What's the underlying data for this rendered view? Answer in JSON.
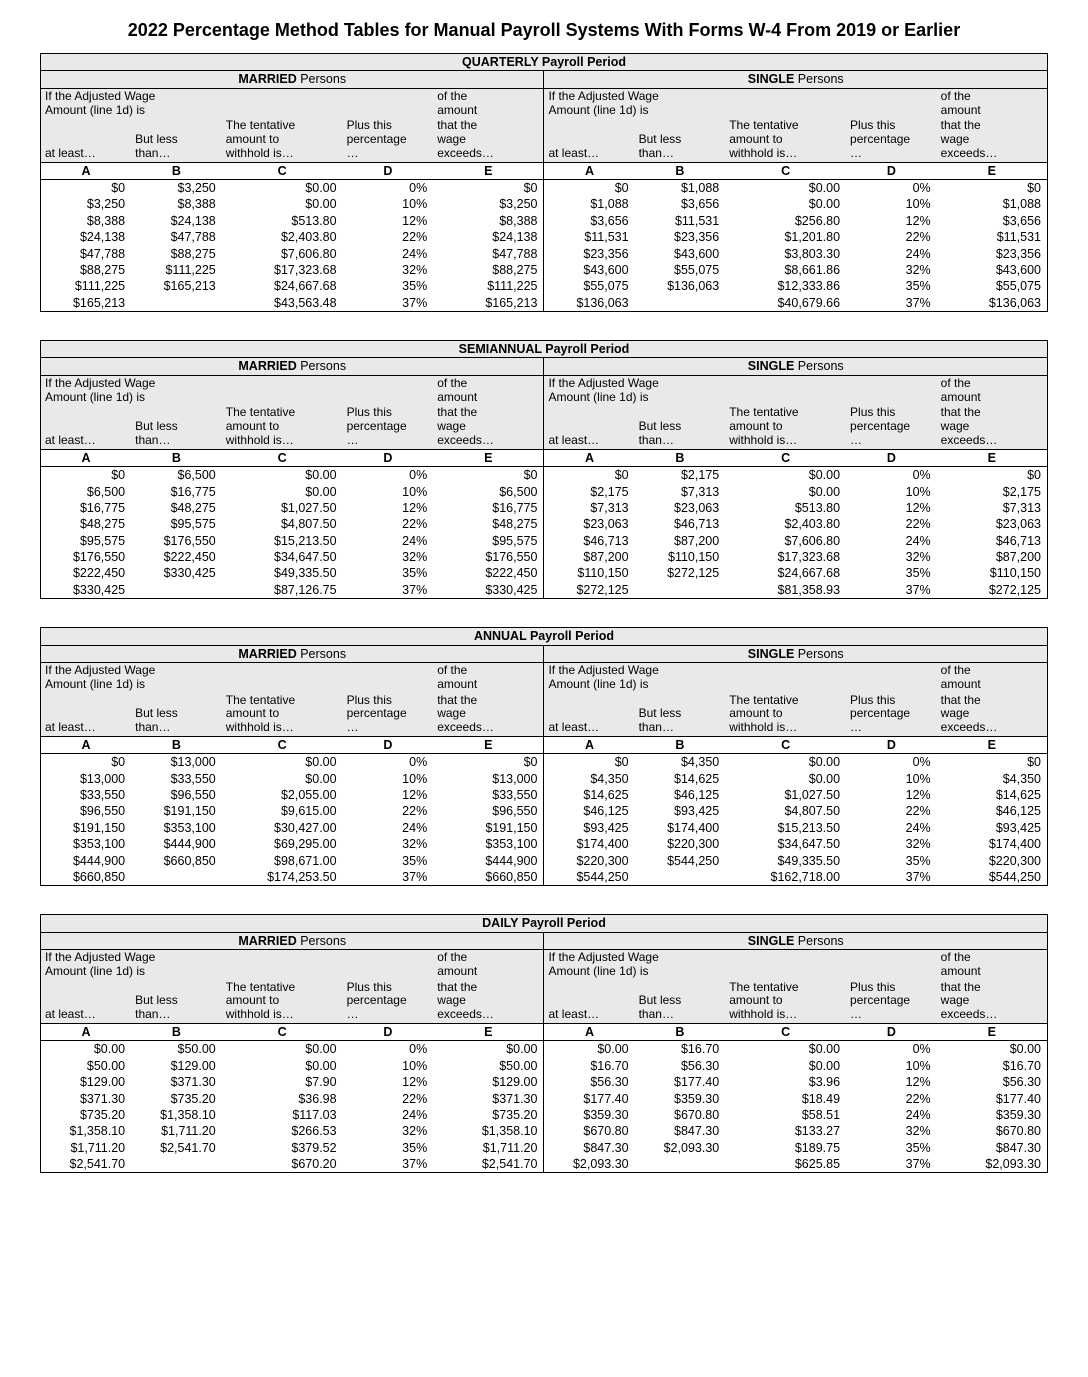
{
  "page_title": "2022 Percentage Method Tables for Manual Payroll Systems With Forms W-4 From 2019 or Earlier",
  "status_labels": {
    "married": "MARRIED",
    "single": "SINGLE",
    "persons": " Persons"
  },
  "header_texts": {
    "adj_wage_l1": "If the Adjusted Wage",
    "adj_wage_l2": "Amount (line 1d) is",
    "of_the": "of the",
    "amount": "amount",
    "amount_that": "amount that",
    "that_the": "that the",
    "the_wage": "the wage",
    "at_least": "at least…",
    "but_less": "But less",
    "than": "than…",
    "tentative_l1": "The tentative",
    "tentative_l2": "amount to",
    "tentative_l3": "withhold is…",
    "plus_this": "Plus this",
    "percentage": "percentage",
    "ellipsis": "…",
    "wage": "wage",
    "exceeds": "exceeds…",
    "A": "A",
    "B": "B",
    "C": "C",
    "D": "D",
    "E": "E"
  },
  "periods": [
    {
      "title": "QUARTERLY Payroll Period",
      "married": [
        [
          "$0",
          "$3,250",
          "$0.00",
          "0%",
          "$0"
        ],
        [
          "$3,250",
          "$8,388",
          "$0.00",
          "10%",
          "$3,250"
        ],
        [
          "$8,388",
          "$24,138",
          "$513.80",
          "12%",
          "$8,388"
        ],
        [
          "$24,138",
          "$47,788",
          "$2,403.80",
          "22%",
          "$24,138"
        ],
        [
          "$47,788",
          "$88,275",
          "$7,606.80",
          "24%",
          "$47,788"
        ],
        [
          "$88,275",
          "$111,225",
          "$17,323.68",
          "32%",
          "$88,275"
        ],
        [
          "$111,225",
          "$165,213",
          "$24,667.68",
          "35%",
          "$111,225"
        ],
        [
          "$165,213",
          "",
          "$43,563.48",
          "37%",
          "$165,213"
        ]
      ],
      "single": [
        [
          "$0",
          "$1,088",
          "$0.00",
          "0%",
          "$0"
        ],
        [
          "$1,088",
          "$3,656",
          "$0.00",
          "10%",
          "$1,088"
        ],
        [
          "$3,656",
          "$11,531",
          "$256.80",
          "12%",
          "$3,656"
        ],
        [
          "$11,531",
          "$23,356",
          "$1,201.80",
          "22%",
          "$11,531"
        ],
        [
          "$23,356",
          "$43,600",
          "$3,803.30",
          "24%",
          "$23,356"
        ],
        [
          "$43,600",
          "$55,075",
          "$8,661.86",
          "32%",
          "$43,600"
        ],
        [
          "$55,075",
          "$136,063",
          "$12,333.86",
          "35%",
          "$55,075"
        ],
        [
          "$136,063",
          "",
          "$40,679.66",
          "37%",
          "$136,063"
        ]
      ]
    },
    {
      "title": "SEMIANNUAL Payroll Period",
      "married": [
        [
          "$0",
          "$6,500",
          "$0.00",
          "0%",
          "$0"
        ],
        [
          "$6,500",
          "$16,775",
          "$0.00",
          "10%",
          "$6,500"
        ],
        [
          "$16,775",
          "$48,275",
          "$1,027.50",
          "12%",
          "$16,775"
        ],
        [
          "$48,275",
          "$95,575",
          "$4,807.50",
          "22%",
          "$48,275"
        ],
        [
          "$95,575",
          "$176,550",
          "$15,213.50",
          "24%",
          "$95,575"
        ],
        [
          "$176,550",
          "$222,450",
          "$34,647.50",
          "32%",
          "$176,550"
        ],
        [
          "$222,450",
          "$330,425",
          "$49,335.50",
          "35%",
          "$222,450"
        ],
        [
          "$330,425",
          "",
          "$87,126.75",
          "37%",
          "$330,425"
        ]
      ],
      "single": [
        [
          "$0",
          "$2,175",
          "$0.00",
          "0%",
          "$0"
        ],
        [
          "$2,175",
          "$7,313",
          "$0.00",
          "10%",
          "$2,175"
        ],
        [
          "$7,313",
          "$23,063",
          "$513.80",
          "12%",
          "$7,313"
        ],
        [
          "$23,063",
          "$46,713",
          "$2,403.80",
          "22%",
          "$23,063"
        ],
        [
          "$46,713",
          "$87,200",
          "$7,606.80",
          "24%",
          "$46,713"
        ],
        [
          "$87,200",
          "$110,150",
          "$17,323.68",
          "32%",
          "$87,200"
        ],
        [
          "$110,150",
          "$272,125",
          "$24,667.68",
          "35%",
          "$110,150"
        ],
        [
          "$272,125",
          "",
          "$81,358.93",
          "37%",
          "$272,125"
        ]
      ]
    },
    {
      "title": "ANNUAL Payroll Period",
      "married": [
        [
          "$0",
          "$13,000",
          "$0.00",
          "0%",
          "$0"
        ],
        [
          "$13,000",
          "$33,550",
          "$0.00",
          "10%",
          "$13,000"
        ],
        [
          "$33,550",
          "$96,550",
          "$2,055.00",
          "12%",
          "$33,550"
        ],
        [
          "$96,550",
          "$191,150",
          "$9,615.00",
          "22%",
          "$96,550"
        ],
        [
          "$191,150",
          "$353,100",
          "$30,427.00",
          "24%",
          "$191,150"
        ],
        [
          "$353,100",
          "$444,900",
          "$69,295.00",
          "32%",
          "$353,100"
        ],
        [
          "$444,900",
          "$660,850",
          "$98,671.00",
          "35%",
          "$444,900"
        ],
        [
          "$660,850",
          "",
          "$174,253.50",
          "37%",
          "$660,850"
        ]
      ],
      "single": [
        [
          "$0",
          "$4,350",
          "$0.00",
          "0%",
          "$0"
        ],
        [
          "$4,350",
          "$14,625",
          "$0.00",
          "10%",
          "$4,350"
        ],
        [
          "$14,625",
          "$46,125",
          "$1,027.50",
          "12%",
          "$14,625"
        ],
        [
          "$46,125",
          "$93,425",
          "$4,807.50",
          "22%",
          "$46,125"
        ],
        [
          "$93,425",
          "$174,400",
          "$15,213.50",
          "24%",
          "$93,425"
        ],
        [
          "$174,400",
          "$220,300",
          "$34,647.50",
          "32%",
          "$174,400"
        ],
        [
          "$220,300",
          "$544,250",
          "$49,335.50",
          "35%",
          "$220,300"
        ],
        [
          "$544,250",
          "",
          "$162,718.00",
          "37%",
          "$544,250"
        ]
      ]
    },
    {
      "title": "DAILY Payroll Period",
      "married": [
        [
          "$0.00",
          "$50.00",
          "$0.00",
          "0%",
          "$0.00"
        ],
        [
          "$50.00",
          "$129.00",
          "$0.00",
          "10%",
          "$50.00"
        ],
        [
          "$129.00",
          "$371.30",
          "$7.90",
          "12%",
          "$129.00"
        ],
        [
          "$371.30",
          "$735.20",
          "$36.98",
          "22%",
          "$371.30"
        ],
        [
          "$735.20",
          "$1,358.10",
          "$117.03",
          "24%",
          "$735.20"
        ],
        [
          "$1,358.10",
          "$1,711.20",
          "$266.53",
          "32%",
          "$1,358.10"
        ],
        [
          "$1,711.20",
          "$2,541.70",
          "$379.52",
          "35%",
          "$1,711.20"
        ],
        [
          "$2,541.70",
          "",
          "$670.20",
          "37%",
          "$2,541.70"
        ]
      ],
      "single": [
        [
          "$0.00",
          "$16.70",
          "$0.00",
          "0%",
          "$0.00"
        ],
        [
          "$16.70",
          "$56.30",
          "$0.00",
          "10%",
          "$16.70"
        ],
        [
          "$56.30",
          "$177.40",
          "$3.96",
          "12%",
          "$56.30"
        ],
        [
          "$177.40",
          "$359.30",
          "$18.49",
          "22%",
          "$177.40"
        ],
        [
          "$359.30",
          "$670.80",
          "$58.51",
          "24%",
          "$359.30"
        ],
        [
          "$670.80",
          "$847.30",
          "$133.27",
          "32%",
          "$670.80"
        ],
        [
          "$847.30",
          "$2,093.30",
          "$189.75",
          "35%",
          "$847.30"
        ],
        [
          "$2,093.30",
          "",
          "$625.85",
          "37%",
          "$2,093.30"
        ]
      ]
    }
  ]
}
